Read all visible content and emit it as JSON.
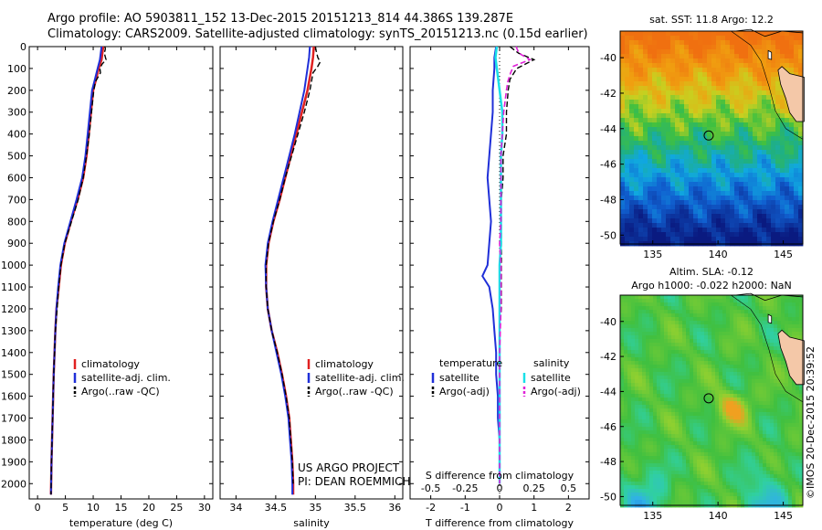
{
  "header": {
    "line1": "Argo profile: AO 5903811_152 13-Dec-2015 20151213_814 44.386S 139.287E",
    "line2": "Climatology: CARS2009. Satellite-adjusted climatology: synTS_20151213.nc (0.15d earlier)"
  },
  "colors": {
    "climatology": "#e02020",
    "satellite": "#1f2fd8",
    "argo": "#000000",
    "satellite_salinity": "#19e0e8",
    "argo_salinity": "#e020d8",
    "land": "#f4c8a8"
  },
  "credits": {
    "project": "US ARGO PROJECT",
    "pi": "PI: DEAN ROEMMICH",
    "imos": "©IMOS 20-Dec-2015 20:39:52"
  },
  "map_top": {
    "title": "sat. SST: 11.8 Argo: 12.2",
    "xticks": [
      "135",
      "140",
      "145"
    ],
    "yticks": [
      "-40",
      "-42",
      "-44",
      "-46",
      "-48",
      "-50"
    ],
    "xlim": [
      132.5,
      146.5
    ],
    "ylim": [
      -50.5,
      -38.5
    ],
    "marker": {
      "lon": 139.287,
      "lat": -44.386
    }
  },
  "map_bottom": {
    "title1": "Altim. SLA: -0.12",
    "title2": "Argo h1000: -0.022 h2000: NaN",
    "xticks": [
      "135",
      "140",
      "145"
    ],
    "yticks": [
      "-40",
      "-42",
      "-44",
      "-46",
      "-48",
      "-50"
    ],
    "xlim": [
      132.5,
      146.5
    ],
    "ylim": [
      -50.5,
      -38.5
    ],
    "marker": {
      "lon": 139.287,
      "lat": -44.386
    }
  },
  "chart_data": [
    {
      "type": "line",
      "xlabel": "temperature (deg C)",
      "xlim": [
        -1.5,
        31.5
      ],
      "ylim": [
        2070,
        0
      ],
      "xticks": [
        "0",
        "5",
        "10",
        "15",
        "20",
        "25",
        "30"
      ],
      "yticks": [
        "0",
        "100",
        "200",
        "300",
        "400",
        "500",
        "600",
        "700",
        "800",
        "900",
        "1000",
        "1100",
        "1200",
        "1300",
        "1400",
        "1500",
        "1600",
        "1700",
        "1800",
        "1900",
        "2000"
      ],
      "legend": [
        "climatology",
        "satellite-adj. clim.",
        "Argo(..raw -QC)"
      ],
      "series": [
        {
          "name": "climatology",
          "depth": [
            0,
            20,
            60,
            100,
            150,
            200,
            300,
            400,
            500,
            600,
            700,
            800,
            900,
            1000,
            1100,
            1200,
            1300,
            1500,
            1700,
            1900,
            2050
          ],
          "values": [
            11.8,
            11.7,
            11.5,
            11.0,
            10.5,
            10.0,
            9.6,
            9.2,
            8.8,
            8.2,
            7.2,
            6.0,
            4.9,
            4.2,
            3.8,
            3.4,
            3.2,
            2.9,
            2.7,
            2.5,
            2.4
          ]
        },
        {
          "name": "satellite-adj. clim.",
          "depth": [
            0,
            20,
            60,
            100,
            150,
            200,
            300,
            400,
            500,
            600,
            700,
            800,
            900,
            1000,
            1100,
            1200,
            1300,
            1500,
            1700,
            1900,
            2050
          ],
          "values": [
            11.5,
            11.4,
            11.2,
            10.8,
            10.3,
            9.8,
            9.4,
            9.0,
            8.6,
            8.0,
            7.0,
            5.9,
            4.8,
            4.1,
            3.7,
            3.4,
            3.2,
            2.9,
            2.7,
            2.5,
            2.4
          ]
        },
        {
          "name": "Argo(..raw -QC)",
          "depth": [
            0,
            10,
            30,
            60,
            80,
            100,
            120,
            160,
            200,
            300,
            400,
            500,
            600,
            700,
            800,
            900,
            1000,
            1100,
            1200,
            1300,
            1500,
            1700,
            1900,
            2050
          ],
          "values": [
            12.1,
            12.2,
            12.0,
            12.3,
            11.6,
            11.2,
            11.3,
            10.4,
            10.1,
            9.7,
            9.3,
            8.8,
            8.2,
            7.3,
            6.1,
            4.9,
            4.2,
            3.8,
            3.5,
            3.2,
            2.9,
            2.7,
            2.5,
            2.4
          ]
        }
      ]
    },
    {
      "type": "line",
      "xlabel": "salinity",
      "xlim": [
        33.8,
        36.1
      ],
      "ylim": [
        2070,
        0
      ],
      "xticks": [
        "34",
        "34.5",
        "35",
        "35.5",
        "36"
      ],
      "legend": [
        "climatology",
        "satellite-adj. clim.",
        "Argo(..raw -QC)"
      ],
      "series": [
        {
          "name": "climatology",
          "depth": [
            0,
            50,
            100,
            200,
            300,
            400,
            500,
            600,
            700,
            800,
            900,
            1000,
            1100,
            1200,
            1300,
            1400,
            1500,
            1600,
            1700,
            1800,
            1900,
            2000,
            2050
          ],
          "values": [
            34.98,
            34.97,
            34.95,
            34.9,
            34.83,
            34.76,
            34.69,
            34.62,
            34.55,
            34.47,
            34.41,
            34.38,
            34.38,
            34.4,
            34.45,
            34.52,
            34.58,
            34.63,
            34.67,
            34.69,
            34.71,
            34.72,
            34.72
          ]
        },
        {
          "name": "satellite-adj. clim.",
          "depth": [
            0,
            50,
            100,
            200,
            300,
            400,
            500,
            600,
            700,
            800,
            900,
            1000,
            1100,
            1200,
            1300,
            1400,
            1500,
            1600,
            1700,
            1800,
            1900,
            2000,
            2050
          ],
          "values": [
            34.93,
            34.92,
            34.9,
            34.86,
            34.8,
            34.74,
            34.67,
            34.6,
            34.53,
            34.46,
            34.4,
            34.37,
            34.38,
            34.4,
            34.45,
            34.51,
            34.57,
            34.62,
            34.66,
            34.68,
            34.7,
            34.71,
            34.71
          ]
        },
        {
          "name": "Argo(..raw -QC)",
          "depth": [
            0,
            20,
            50,
            70,
            90,
            120,
            160,
            200,
            300,
            400,
            500,
            600,
            700,
            800,
            900,
            1000,
            1100,
            1200,
            1300,
            1400,
            1500,
            1600,
            1700,
            1800,
            1900,
            2000
          ],
          "values": [
            35.0,
            35.01,
            35.03,
            35.06,
            35.03,
            34.97,
            34.95,
            34.93,
            34.86,
            34.78,
            34.7,
            34.62,
            34.55,
            34.47,
            34.41,
            34.38,
            34.38,
            34.4,
            34.45,
            34.52,
            34.58,
            34.63,
            34.67,
            34.69,
            34.71,
            34.72
          ]
        }
      ]
    },
    {
      "type": "line",
      "xlabel": "T difference from climatology",
      "xlabel2": "S difference from climatology",
      "xlim": [
        -2.6,
        2.6
      ],
      "ylim": [
        2070,
        0
      ],
      "xticks": [
        "-2",
        "-1",
        "0",
        "1",
        "2"
      ],
      "xticks2": [
        "-0.5",
        "-0.25",
        "0",
        "0.25",
        "0.5"
      ],
      "legend_temperature_title": "temperature",
      "legend_salinity_title": "salinity",
      "legend": [
        "satellite",
        "Argo(-adj)",
        "satellite",
        "Argo(-adj)"
      ],
      "series": [
        {
          "name": "satellite",
          "group": "temperature",
          "depth": [
            0,
            50,
            100,
            200,
            300,
            400,
            500,
            600,
            700,
            800,
            900,
            1000,
            1050,
            1100,
            1200,
            1300,
            1400,
            1500,
            1600,
            1700,
            1800,
            1900,
            2000
          ],
          "values": [
            -0.1,
            -0.15,
            -0.15,
            -0.2,
            -0.2,
            -0.25,
            -0.3,
            -0.35,
            -0.3,
            -0.25,
            -0.3,
            -0.35,
            -0.5,
            -0.3,
            -0.2,
            -0.15,
            -0.1,
            -0.1,
            -0.05,
            -0.05,
            0,
            0,
            0
          ]
        },
        {
          "name": "Argo(-adj)",
          "group": "temperature",
          "depth": [
            0,
            30,
            60,
            100,
            150,
            200,
            300,
            400,
            500,
            600,
            700,
            800,
            900,
            1000,
            1100,
            1200,
            1300,
            1400,
            1500,
            1600,
            1700,
            1800,
            1900,
            2000
          ],
          "values": [
            0.3,
            0.55,
            1.0,
            0.5,
            0.3,
            0.25,
            0.2,
            0.2,
            0.1,
            0.1,
            0.05,
            0.05,
            0.05,
            0.05,
            0.05,
            0.05,
            0,
            0,
            0,
            0,
            0,
            0,
            0,
            0
          ]
        },
        {
          "name": "satellite",
          "group": "salinity",
          "depth": [
            0,
            50,
            100,
            200,
            300,
            400,
            500,
            600,
            700,
            800,
            900,
            1000,
            1100,
            1200,
            1400,
            1600,
            1800,
            2000
          ],
          "values": [
            -0.02,
            -0.03,
            -0.02,
            0,
            0.02,
            0.02,
            0.01,
            0.01,
            0.01,
            0.01,
            0.01,
            0.0,
            0.0,
            0.0,
            0.0,
            0.0,
            0.0,
            0.0
          ]
        },
        {
          "name": "Argo(-adj)",
          "group": "salinity",
          "depth": [
            0,
            30,
            60,
            90,
            120,
            160,
            200,
            300,
            400,
            500,
            600,
            700,
            800,
            900,
            1000,
            1100,
            1200,
            1400,
            1600,
            1800,
            2000
          ],
          "values": [
            0.12,
            0.14,
            0.22,
            0.1,
            0.08,
            0.06,
            0.05,
            0.03,
            0.02,
            0.01,
            0.01,
            0.01,
            0.01,
            0.0,
            0.01,
            0.01,
            0.01,
            0.0,
            0.0,
            0.0,
            0.0
          ]
        }
      ]
    }
  ]
}
